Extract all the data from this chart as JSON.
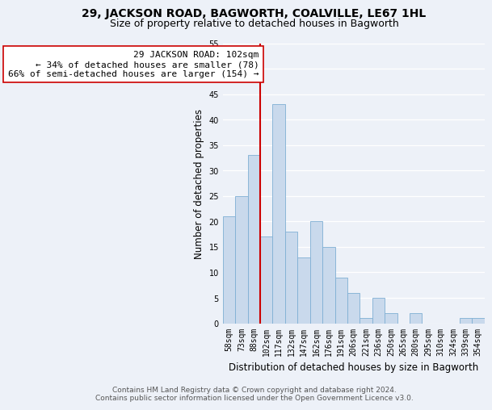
{
  "title": "29, JACKSON ROAD, BAGWORTH, COALVILLE, LE67 1HL",
  "subtitle": "Size of property relative to detached houses in Bagworth",
  "xlabel": "Distribution of detached houses by size in Bagworth",
  "ylabel": "Number of detached properties",
  "categories": [
    "58sqm",
    "73sqm",
    "88sqm",
    "102sqm",
    "117sqm",
    "132sqm",
    "147sqm",
    "162sqm",
    "176sqm",
    "191sqm",
    "206sqm",
    "221sqm",
    "236sqm",
    "250sqm",
    "265sqm",
    "280sqm",
    "295sqm",
    "310sqm",
    "324sqm",
    "339sqm",
    "354sqm"
  ],
  "values": [
    21,
    25,
    33,
    17,
    43,
    18,
    13,
    20,
    15,
    9,
    6,
    1,
    5,
    2,
    0,
    2,
    0,
    0,
    0,
    1,
    1
  ],
  "bar_color": "#c9d9ec",
  "bar_edge_color": "#7fafd4",
  "subject_bar_index": 3,
  "subject_line_color": "#cc0000",
  "annotation_line1": "29 JACKSON ROAD: 102sqm",
  "annotation_line2": "← 34% of detached houses are smaller (78)",
  "annotation_line3": "66% of semi-detached houses are larger (154) →",
  "annotation_box_color": "#ffffff",
  "annotation_box_edge": "#cc0000",
  "ylim": [
    0,
    55
  ],
  "yticks": [
    0,
    5,
    10,
    15,
    20,
    25,
    30,
    35,
    40,
    45,
    50,
    55
  ],
  "footer_line1": "Contains HM Land Registry data © Crown copyright and database right 2024.",
  "footer_line2": "Contains public sector information licensed under the Open Government Licence v3.0.",
  "background_color": "#edf1f8",
  "grid_color": "#ffffff",
  "title_fontsize": 10,
  "subtitle_fontsize": 9,
  "axis_label_fontsize": 8.5,
  "tick_fontsize": 7,
  "annotation_fontsize": 8,
  "footer_fontsize": 6.5
}
